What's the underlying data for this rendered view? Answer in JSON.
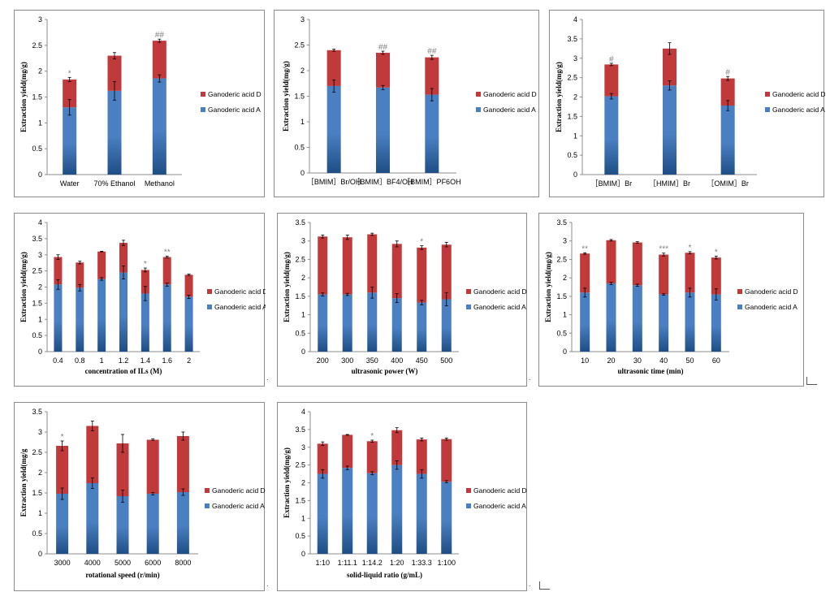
{
  "colors": {
    "acidA": "#4a7fc1",
    "acidA_dark": "#1f4e85",
    "acidD": "#c0393b",
    "errorbar": "#000",
    "axis": "#8c8c8c",
    "marker": "#7f7f7f"
  },
  "series_names": [
    "Ganoderic acid D",
    "Ganoderic acid A"
  ],
  "chart_data": [
    {
      "type": "bar",
      "stacked": true,
      "categories": [
        "Water",
        "70% Ethanol",
        "Methanol"
      ],
      "ylabel": "Extraction yield(mg/g)",
      "xlabel": "",
      "ylim": [
        0,
        3
      ],
      "yticks": [
        "0",
        "0.5",
        "1",
        "1.5",
        "2",
        "2.5",
        "3"
      ],
      "series": [
        {
          "name": "Ganoderic acid A",
          "values": [
            1.3,
            1.62,
            1.86
          ],
          "err": [
            0.15,
            0.18,
            0.07
          ]
        },
        {
          "name": "Ganoderic acid D",
          "values": [
            0.54,
            0.68,
            0.73
          ],
          "err": [
            0.04,
            0.06,
            0.03
          ]
        }
      ],
      "annotations": [
        "*",
        "",
        "##"
      ]
    },
    {
      "type": "bar",
      "stacked": true,
      "categories": [
        "［BMIM］Br/OH",
        "［BMIM］BF4/OH",
        "［BMIM］PF6OH"
      ],
      "ylabel": "Extraction yield(mg/g)",
      "xlabel": "",
      "ylim": [
        0,
        3
      ],
      "yticks": [
        "0",
        "0.5",
        "1",
        "1.5",
        "2",
        "2.5",
        "3"
      ],
      "series": [
        {
          "name": "Ganoderic acid A",
          "values": [
            1.7,
            1.67,
            1.53
          ],
          "err": [
            0.12,
            0.04,
            0.12
          ]
        },
        {
          "name": "Ganoderic acid D",
          "values": [
            0.7,
            0.68,
            0.73
          ],
          "err": [
            0.02,
            0.03,
            0.04
          ]
        }
      ],
      "annotations": [
        "",
        "##",
        "##"
      ]
    },
    {
      "type": "bar",
      "stacked": true,
      "categories": [
        "［BMIM］Br",
        "［HMIM］Br",
        "［OMIM］Br"
      ],
      "ylabel": "Extraction yield(mg/g)",
      "xlabel": "",
      "ylim": [
        0,
        4
      ],
      "yticks": [
        "0",
        "0.5",
        "1",
        "1.5",
        "2",
        "2.5",
        "3",
        "3.5",
        "4"
      ],
      "series": [
        {
          "name": "Ganoderic acid A",
          "values": [
            2.02,
            2.3,
            1.78
          ],
          "err": [
            0.07,
            0.12,
            0.13
          ]
        },
        {
          "name": "Ganoderic acid D",
          "values": [
            0.82,
            0.95,
            0.7
          ],
          "err": [
            0.03,
            0.15,
            0.05
          ]
        }
      ],
      "annotations": [
        "#",
        "",
        "#"
      ]
    },
    {
      "type": "bar",
      "stacked": true,
      "categories": [
        "0.4",
        "0.8",
        "1",
        "1.2",
        "1.4",
        "1.6",
        "2"
      ],
      "ylabel": "Extraction yield(mg/g)",
      "xlabel": "concentration of ILs (M)",
      "ylim": [
        0,
        4
      ],
      "yticks": [
        "0",
        "0.5",
        "1",
        "1.5",
        "2",
        "2.5",
        "3",
        "3.5",
        "4"
      ],
      "series": [
        {
          "name": "Ganoderic acid A",
          "values": [
            2.08,
            1.98,
            2.25,
            2.45,
            1.8,
            2.08,
            1.7
          ],
          "err": [
            0.15,
            0.1,
            0.04,
            0.2,
            0.22,
            0.05,
            0.05
          ]
        },
        {
          "name": "Ganoderic acid D",
          "values": [
            0.85,
            0.78,
            0.85,
            0.92,
            0.73,
            0.85,
            0.68
          ],
          "err": [
            0.07,
            0.04,
            0.01,
            0.08,
            0.06,
            0.03,
            0.02
          ]
        }
      ],
      "annotations": [
        "",
        "",
        "",
        "",
        "*",
        "**",
        ""
      ]
    },
    {
      "type": "bar",
      "stacked": true,
      "categories": [
        "200",
        "300",
        "350",
        "400",
        "450",
        "500"
      ],
      "ylabel": "Extraction yield(mg/g)",
      "xlabel": "ultrasonic power (W)",
      "ylim": [
        0,
        3.5
      ],
      "yticks": [
        "0",
        "0.5",
        "1",
        "1.5",
        "2",
        "2.5",
        "3",
        "3.5"
      ],
      "series": [
        {
          "name": "Ganoderic acid A",
          "values": [
            1.55,
            1.55,
            1.6,
            1.45,
            1.33,
            1.42
          ],
          "err": [
            0.04,
            0.03,
            0.15,
            0.12,
            0.06,
            0.18
          ]
        },
        {
          "name": "Ganoderic acid D",
          "values": [
            1.57,
            1.55,
            1.58,
            1.47,
            1.49,
            1.48
          ],
          "err": [
            0.04,
            0.06,
            0.03,
            0.08,
            0.05,
            0.06
          ]
        }
      ],
      "annotations": [
        "",
        "",
        "",
        "",
        "*",
        ""
      ]
    },
    {
      "type": "bar",
      "stacked": true,
      "categories": [
        "10",
        "20",
        "30",
        "40",
        "50",
        "60"
      ],
      "ylabel": "Extraction yield(mg/g)",
      "xlabel": "ultrasonic time (min)",
      "ylim": [
        0,
        3.5
      ],
      "yticks": [
        "0",
        "0.5",
        "1",
        "1.5",
        "2",
        "2.5",
        "3",
        "3.5"
      ],
      "series": [
        {
          "name": "Ganoderic acid A",
          "values": [
            1.6,
            1.85,
            1.8,
            1.55,
            1.6,
            1.55
          ],
          "err": [
            0.12,
            0.03,
            0.03,
            0.02,
            0.12,
            0.15
          ]
        },
        {
          "name": "Ganoderic acid D",
          "values": [
            1.06,
            1.17,
            1.16,
            1.08,
            1.08,
            1.0
          ],
          "err": [
            0.02,
            0.02,
            0.02,
            0.04,
            0.03,
            0.04
          ]
        }
      ],
      "annotations": [
        "**",
        "",
        "",
        "***",
        "*",
        "*"
      ]
    },
    {
      "type": "bar",
      "stacked": true,
      "categories": [
        "3000",
        "4000",
        "5000",
        "6000",
        "8000"
      ],
      "ylabel": "Extraction yield(mg/g",
      "xlabel": "rotational speed (r/min)",
      "ylim": [
        0,
        3.5
      ],
      "yticks": [
        "0",
        "0.5",
        "1",
        "1.5",
        "2",
        "2.5",
        "3",
        "3.5"
      ],
      "series": [
        {
          "name": "Ganoderic acid A",
          "values": [
            1.48,
            1.74,
            1.42,
            1.48,
            1.52
          ],
          "err": [
            0.14,
            0.13,
            0.15,
            0.03,
            0.08
          ]
        },
        {
          "name": "Ganoderic acid D",
          "values": [
            1.18,
            1.41,
            1.3,
            1.33,
            1.38
          ],
          "err": [
            0.12,
            0.12,
            0.22,
            0.02,
            0.1
          ]
        }
      ],
      "annotations": [
        "*",
        "",
        "",
        "",
        ""
      ]
    },
    {
      "type": "bar",
      "stacked": true,
      "categories": [
        "1:10",
        "1:11.1",
        "1:14.2",
        "1:20",
        "1:33.3",
        "1:100"
      ],
      "ylabel": "Extraction yield(mg/g)",
      "xlabel": "solid-liquid ratio (g/mL)",
      "ylim": [
        0,
        4
      ],
      "yticks": [
        "0",
        "0.5",
        "1",
        "1.5",
        "2",
        "2.5",
        "3",
        "3.5",
        "4"
      ],
      "series": [
        {
          "name": "Ganoderic acid A",
          "values": [
            2.25,
            2.42,
            2.27,
            2.5,
            2.25,
            2.03
          ],
          "err": [
            0.12,
            0.05,
            0.04,
            0.12,
            0.12,
            0.03
          ]
        },
        {
          "name": "Ganoderic acid D",
          "values": [
            0.85,
            0.93,
            0.9,
            0.98,
            0.97,
            1.2
          ],
          "err": [
            0.05,
            0.01,
            0.03,
            0.07,
            0.04,
            0.03
          ]
        }
      ],
      "annotations": [
        "",
        "",
        "*",
        "",
        "",
        ""
      ]
    }
  ],
  "stray_marks": [
    ".",
    ".",
    ".",
    "."
  ]
}
